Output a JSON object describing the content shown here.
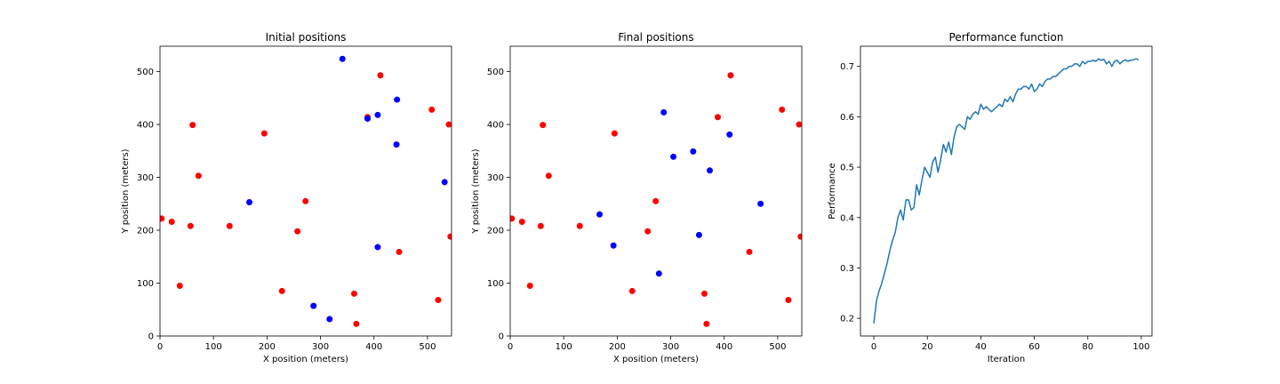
{
  "colors": {
    "red": "#ff0000",
    "blue": "#0000ff",
    "line": "#1f77b4",
    "axis": "#000000",
    "background": "#ffffff"
  },
  "chart_data": [
    {
      "type": "scatter",
      "title": "Initial positions",
      "xlabel": "X position (meters)",
      "ylabel": "Y position (meters)",
      "xlim": [
        0,
        545
      ],
      "ylim": [
        0,
        548
      ],
      "xticks": [
        0,
        100,
        200,
        300,
        400,
        500
      ],
      "yticks": [
        0,
        100,
        200,
        300,
        400,
        500
      ],
      "grid": false,
      "series": [
        {
          "color": "red",
          "points": [
            [
              3,
              222
            ],
            [
              22,
              216
            ],
            [
              37,
              95
            ],
            [
              57,
              208
            ],
            [
              61,
              399
            ],
            [
              72,
              303
            ],
            [
              130,
              208
            ],
            [
              195,
              383
            ],
            [
              228,
              85
            ],
            [
              257,
              198
            ],
            [
              272,
              255
            ],
            [
              363,
              80
            ],
            [
              367,
              23
            ],
            [
              388,
              414
            ],
            [
              412,
              493
            ],
            [
              447,
              159
            ],
            [
              508,
              428
            ],
            [
              520,
              68
            ],
            [
              540,
              400
            ],
            [
              543,
              188
            ]
          ]
        },
        {
          "color": "blue",
          "points": [
            [
              167,
              253
            ],
            [
              287,
              57
            ],
            [
              317,
              32
            ],
            [
              341,
              524
            ],
            [
              388,
              411
            ],
            [
              407,
              418
            ],
            [
              407,
              168
            ],
            [
              442,
              362
            ],
            [
              443,
              447
            ],
            [
              532,
              291
            ]
          ]
        }
      ]
    },
    {
      "type": "scatter",
      "title": "Final positions",
      "xlabel": "X position (meters)",
      "ylabel": "Y position (meters)",
      "xlim": [
        0,
        545
      ],
      "ylim": [
        0,
        548
      ],
      "xticks": [
        0,
        100,
        200,
        300,
        400,
        500
      ],
      "yticks": [
        0,
        100,
        200,
        300,
        400,
        500
      ],
      "grid": false,
      "series": [
        {
          "color": "red",
          "points": [
            [
              3,
              222
            ],
            [
              22,
              216
            ],
            [
              37,
              95
            ],
            [
              57,
              208
            ],
            [
              61,
              399
            ],
            [
              72,
              303
            ],
            [
              130,
              208
            ],
            [
              195,
              383
            ],
            [
              228,
              85
            ],
            [
              257,
              198
            ],
            [
              272,
              255
            ],
            [
              363,
              80
            ],
            [
              367,
              23
            ],
            [
              388,
              414
            ],
            [
              412,
              493
            ],
            [
              447,
              159
            ],
            [
              508,
              428
            ],
            [
              520,
              68
            ],
            [
              540,
              400
            ],
            [
              543,
              188
            ]
          ]
        },
        {
          "color": "blue",
          "points": [
            [
              167,
              230
            ],
            [
              193,
              171
            ],
            [
              278,
              118
            ],
            [
              287,
              423
            ],
            [
              305,
              339
            ],
            [
              342,
              349
            ],
            [
              353,
              191
            ],
            [
              373,
              313
            ],
            [
              410,
              381
            ],
            [
              468,
              250
            ]
          ]
        }
      ]
    },
    {
      "type": "line",
      "title": "Performance function",
      "xlabel": "Iteration",
      "ylabel": "Performance",
      "xlim": [
        -5,
        104
      ],
      "ylim": [
        0.165,
        0.74
      ],
      "xticks": [
        0,
        20,
        40,
        60,
        80,
        100
      ],
      "yticks": [
        0.2,
        0.3,
        0.4,
        0.5,
        0.6,
        0.7
      ],
      "ytick_labels": [
        "0.2",
        "0.3",
        "0.4",
        "0.5",
        "0.6",
        "0.7"
      ],
      "grid": false,
      "series": [
        {
          "color": "line",
          "x": [
            0,
            1,
            2,
            3,
            4,
            5,
            6,
            7,
            8,
            9,
            10,
            11,
            12,
            13,
            14,
            15,
            16,
            17,
            18,
            19,
            20,
            21,
            22,
            23,
            24,
            25,
            26,
            27,
            28,
            29,
            30,
            31,
            32,
            33,
            34,
            35,
            36,
            37,
            38,
            39,
            40,
            41,
            42,
            43,
            44,
            45,
            46,
            47,
            48,
            49,
            50,
            51,
            52,
            53,
            54,
            55,
            56,
            57,
            58,
            59,
            60,
            61,
            62,
            63,
            64,
            65,
            66,
            67,
            68,
            69,
            70,
            71,
            72,
            73,
            74,
            75,
            76,
            77,
            78,
            79,
            80,
            81,
            82,
            83,
            84,
            85,
            86,
            87,
            88,
            89,
            90,
            91,
            92,
            93,
            94,
            95,
            96,
            97,
            98,
            99
          ],
          "y": [
            0.19,
            0.235,
            0.255,
            0.27,
            0.29,
            0.31,
            0.335,
            0.355,
            0.37,
            0.4,
            0.415,
            0.395,
            0.435,
            0.435,
            0.415,
            0.42,
            0.465,
            0.445,
            0.475,
            0.5,
            0.49,
            0.48,
            0.51,
            0.52,
            0.49,
            0.515,
            0.545,
            0.53,
            0.55,
            0.525,
            0.56,
            0.58,
            0.585,
            0.58,
            0.575,
            0.6,
            0.595,
            0.605,
            0.61,
            0.605,
            0.625,
            0.615,
            0.62,
            0.615,
            0.61,
            0.615,
            0.62,
            0.625,
            0.62,
            0.635,
            0.63,
            0.64,
            0.63,
            0.645,
            0.655,
            0.655,
            0.66,
            0.66,
            0.655,
            0.665,
            0.65,
            0.655,
            0.665,
            0.66,
            0.67,
            0.675,
            0.675,
            0.68,
            0.68,
            0.685,
            0.69,
            0.695,
            0.695,
            0.7,
            0.7,
            0.705,
            0.705,
            0.7,
            0.71,
            0.705,
            0.71,
            0.71,
            0.712,
            0.71,
            0.715,
            0.712,
            0.714,
            0.705,
            0.71,
            0.7,
            0.71,
            0.712,
            0.705,
            0.71,
            0.713,
            0.71,
            0.712,
            0.713,
            0.715,
            0.713
          ]
        }
      ]
    }
  ]
}
